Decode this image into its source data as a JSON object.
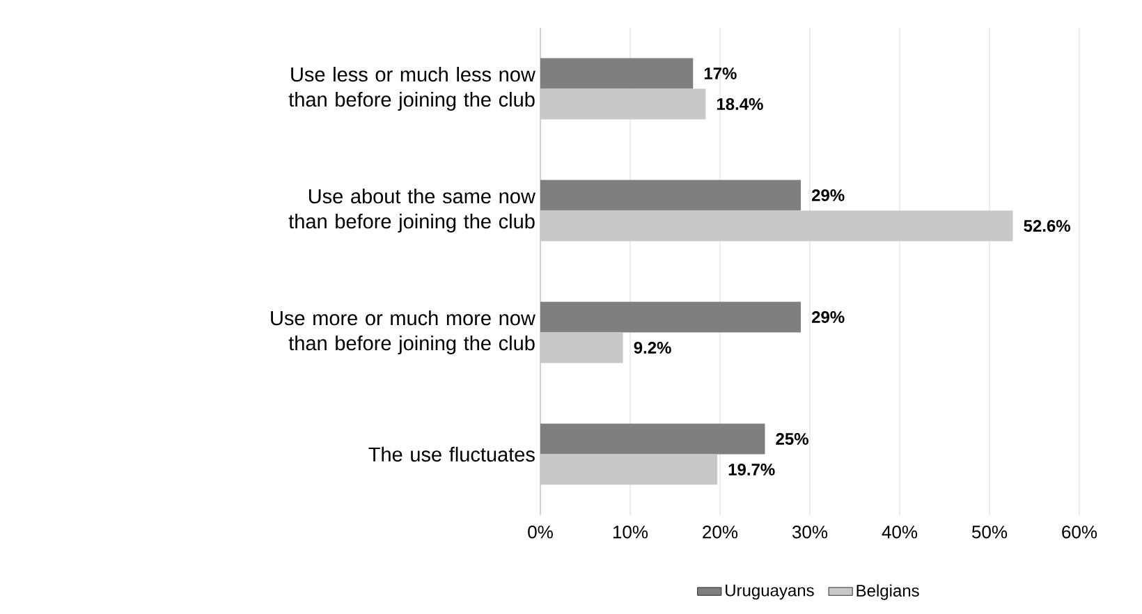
{
  "chart_data": {
    "type": "bar",
    "orientation": "horizontal",
    "categories": [
      "Use less or much less now than before joining the club",
      "Use about the same now than before joining the club",
      "Use more or much more now than before joining the club",
      "The use fluctuates"
    ],
    "series": [
      {
        "name": "Uruguayans",
        "color": "#7f7f7f",
        "values": [
          17,
          29,
          29,
          25
        ],
        "value_labels": [
          "17%",
          "29%",
          "29%",
          "25%"
        ]
      },
      {
        "name": "Belgians",
        "color": "#c8c8c8",
        "values": [
          18.4,
          52.6,
          9.2,
          19.7
        ],
        "value_labels": [
          "18.4%",
          "52.6%",
          "9.2%",
          "19.7%"
        ]
      }
    ],
    "xlim": [
      0,
      60
    ],
    "xticks": [
      {
        "value": 0,
        "label": "0%"
      },
      {
        "value": 10,
        "label": "10%"
      },
      {
        "value": 20,
        "label": "20%"
      },
      {
        "value": 30,
        "label": "30%"
      },
      {
        "value": 40,
        "label": "40%"
      },
      {
        "value": 50,
        "label": "50%"
      },
      {
        "value": 60,
        "label": "60%"
      }
    ],
    "grid": "x",
    "legend": "bottom"
  }
}
